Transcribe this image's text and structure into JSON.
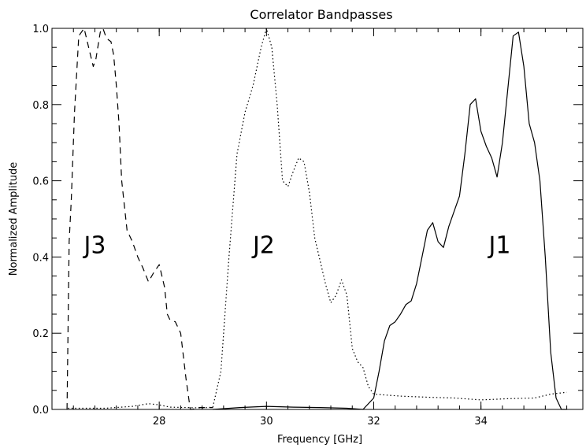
{
  "chart_data": {
    "type": "line",
    "title": "Correlator Bandpasses",
    "xlabel": "Frequency [GHz]",
    "ylabel": "Normalized Amplitude",
    "xlim": [
      26.0,
      35.9
    ],
    "ylim": [
      0.0,
      1.0
    ],
    "xticks": [
      28,
      30,
      32,
      34
    ],
    "xtick_labels": [
      "28",
      "30",
      "32",
      "34"
    ],
    "yticks": [
      0.0,
      0.2,
      0.4,
      0.6,
      0.8,
      1.0
    ],
    "ytick_labels": [
      "0.0",
      "0.2",
      "0.4",
      "0.6",
      "0.8",
      "1.0"
    ],
    "grid": false,
    "series": [
      {
        "name": "J3",
        "style": "dashed",
        "label_pos": [
          26.8,
          0.41
        ],
        "x": [
          26.28,
          26.32,
          26.36,
          26.42,
          26.5,
          26.6,
          26.7,
          26.77,
          26.82,
          26.9,
          26.95,
          27.0,
          27.05,
          27.1,
          27.15,
          27.2,
          27.25,
          27.3,
          27.4,
          27.5,
          27.6,
          27.7,
          27.8,
          27.9,
          28.0,
          28.1,
          28.15,
          28.2,
          28.3,
          28.4,
          28.5,
          28.58,
          28.62,
          28.7,
          28.9,
          29.0
        ],
        "y": [
          0.0,
          0.44,
          0.55,
          0.78,
          0.98,
          1.0,
          0.94,
          0.9,
          0.92,
          0.99,
          1.0,
          0.98,
          0.97,
          0.965,
          0.93,
          0.85,
          0.75,
          0.6,
          0.47,
          0.44,
          0.4,
          0.37,
          0.335,
          0.36,
          0.38,
          0.32,
          0.25,
          0.235,
          0.23,
          0.2,
          0.08,
          0.0,
          0.0,
          0.005,
          0.005,
          0.005
        ]
      },
      {
        "name": "J2",
        "style": "dotted",
        "label_pos": [
          29.95,
          0.41
        ],
        "x": [
          26.3,
          27.0,
          27.5,
          27.8,
          28.0,
          28.2,
          28.5,
          28.8,
          29.0,
          29.15,
          29.3,
          29.45,
          29.6,
          29.75,
          29.9,
          30.0,
          30.1,
          30.2,
          30.3,
          30.4,
          30.5,
          30.6,
          30.7,
          30.8,
          30.9,
          31.0,
          31.1,
          31.2,
          31.3,
          31.4,
          31.5,
          31.6,
          31.7,
          31.8,
          31.9,
          32.0,
          32.5,
          33.0,
          33.5,
          34.0,
          34.5,
          35.0,
          35.3,
          35.6
        ],
        "y": [
          0.003,
          0.003,
          0.008,
          0.015,
          0.012,
          0.006,
          0.005,
          0.004,
          0.006,
          0.1,
          0.4,
          0.67,
          0.78,
          0.85,
          0.95,
          1.0,
          0.95,
          0.8,
          0.6,
          0.585,
          0.625,
          0.66,
          0.65,
          0.57,
          0.45,
          0.39,
          0.33,
          0.28,
          0.3,
          0.34,
          0.3,
          0.16,
          0.125,
          0.11,
          0.06,
          0.04,
          0.035,
          0.032,
          0.03,
          0.025,
          0.028,
          0.03,
          0.04,
          0.045
        ]
      },
      {
        "name": "J1",
        "style": "solid",
        "label_pos": [
          34.35,
          0.41
        ],
        "x": [
          29.0,
          29.5,
          30.0,
          30.5,
          31.0,
          31.5,
          31.8,
          32.0,
          32.1,
          32.2,
          32.3,
          32.4,
          32.5,
          32.6,
          32.7,
          32.8,
          32.9,
          33.0,
          33.1,
          33.2,
          33.3,
          33.4,
          33.5,
          33.6,
          33.7,
          33.8,
          33.9,
          34.0,
          34.1,
          34.2,
          34.3,
          34.4,
          34.5,
          34.6,
          34.7,
          34.8,
          34.9,
          35.0,
          35.1,
          35.2,
          35.3,
          35.4,
          35.5,
          35.6
        ],
        "y": [
          0.0,
          0.005,
          0.008,
          0.006,
          0.005,
          0.003,
          0.0,
          0.03,
          0.1,
          0.18,
          0.22,
          0.23,
          0.25,
          0.275,
          0.285,
          0.33,
          0.4,
          0.47,
          0.49,
          0.44,
          0.425,
          0.48,
          0.52,
          0.56,
          0.67,
          0.8,
          0.815,
          0.73,
          0.69,
          0.66,
          0.61,
          0.7,
          0.84,
          0.98,
          0.99,
          0.9,
          0.75,
          0.7,
          0.6,
          0.4,
          0.15,
          0.03,
          0.0,
          0.0
        ]
      }
    ]
  }
}
